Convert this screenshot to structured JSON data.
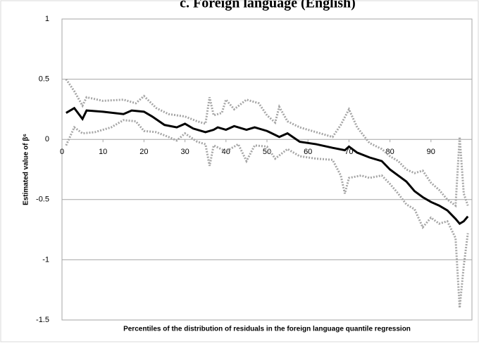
{
  "chart_data": {
    "type": "line",
    "title": "c.    Foreign language (English)",
    "y_label": "Estimated value of β⁶",
    "x_label": "Percentiles of the distribution of residuals in the foreign language quantile regression",
    "xlim": [
      0,
      100
    ],
    "xticks": [
      0,
      10,
      20,
      30,
      40,
      50,
      60,
      70,
      80,
      90
    ],
    "ylim": [
      -1.5,
      1
    ],
    "yticks": [
      1,
      0.5,
      0,
      -0.5,
      -1,
      -1.5
    ],
    "grid": true,
    "series": [
      {
        "color": "#a6a6a6",
        "dashed": true,
        "x": [
          1,
          3,
          5,
          6,
          10,
          15,
          18,
          20,
          23,
          26,
          30,
          33,
          35,
          36,
          37,
          39,
          40,
          42,
          45,
          48,
          50,
          52,
          53,
          55,
          58,
          62,
          66,
          68,
          70,
          72,
          75,
          78,
          80,
          82,
          84,
          86,
          88,
          90,
          92,
          94,
          96,
          97,
          98,
          99
        ],
        "values": [
          0.5,
          0.4,
          0.28,
          0.35,
          0.32,
          0.33,
          0.3,
          0.36,
          0.26,
          0.21,
          0.19,
          0.15,
          0.13,
          0.35,
          0.2,
          0.22,
          0.33,
          0.25,
          0.33,
          0.3,
          0.2,
          0.14,
          0.27,
          0.15,
          0.1,
          0.06,
          0.02,
          0.12,
          0.25,
          0.1,
          -0.03,
          -0.08,
          -0.14,
          -0.18,
          -0.25,
          -0.28,
          -0.26,
          -0.36,
          -0.42,
          -0.5,
          -0.55,
          0.02,
          -0.45,
          -0.55
        ]
      },
      {
        "color": "#a6a6a6",
        "dashed": true,
        "x": [
          1,
          3,
          5,
          8,
          12,
          15,
          18,
          20,
          23,
          26,
          28,
          30,
          33,
          35,
          36,
          37,
          40,
          43,
          45,
          47,
          50,
          52,
          55,
          58,
          62,
          66,
          68,
          69,
          70,
          73,
          75,
          78,
          80,
          82,
          84,
          86,
          88,
          90,
          92,
          94,
          96,
          97,
          98,
          99
        ],
        "values": [
          -0.05,
          0.1,
          0.05,
          0.06,
          0.1,
          0.16,
          0.15,
          0.07,
          0.06,
          0.02,
          -0.01,
          0.05,
          -0.02,
          -0.04,
          -0.22,
          -0.05,
          -0.1,
          -0.04,
          -0.18,
          -0.05,
          -0.06,
          -0.16,
          -0.08,
          -0.14,
          -0.16,
          -0.17,
          -0.3,
          -0.45,
          -0.32,
          -0.3,
          -0.32,
          -0.3,
          -0.37,
          -0.45,
          -0.54,
          -0.58,
          -0.73,
          -0.65,
          -0.7,
          -0.68,
          -0.82,
          -1.4,
          -1.05,
          -0.78
        ]
      },
      {
        "color": "#000000",
        "dashed": false,
        "x": [
          1,
          3,
          5,
          6,
          10,
          15,
          17,
          20,
          22,
          25,
          28,
          30,
          32,
          35,
          37,
          38,
          40,
          42,
          45,
          47,
          50,
          53,
          55,
          58,
          62,
          66,
          69,
          70,
          72,
          75,
          78,
          80,
          82,
          84,
          86,
          88,
          90,
          92,
          94,
          96,
          97,
          98,
          99
        ],
        "values": [
          0.22,
          0.26,
          0.17,
          0.24,
          0.23,
          0.21,
          0.24,
          0.23,
          0.19,
          0.12,
          0.1,
          0.13,
          0.09,
          0.06,
          0.08,
          0.1,
          0.08,
          0.11,
          0.08,
          0.1,
          0.07,
          0.02,
          0.05,
          -0.02,
          -0.04,
          -0.07,
          -0.09,
          -0.06,
          -0.11,
          -0.15,
          -0.18,
          -0.25,
          -0.3,
          -0.35,
          -0.43,
          -0.48,
          -0.52,
          -0.55,
          -0.59,
          -0.66,
          -0.7,
          -0.68,
          -0.64
        ]
      }
    ]
  }
}
